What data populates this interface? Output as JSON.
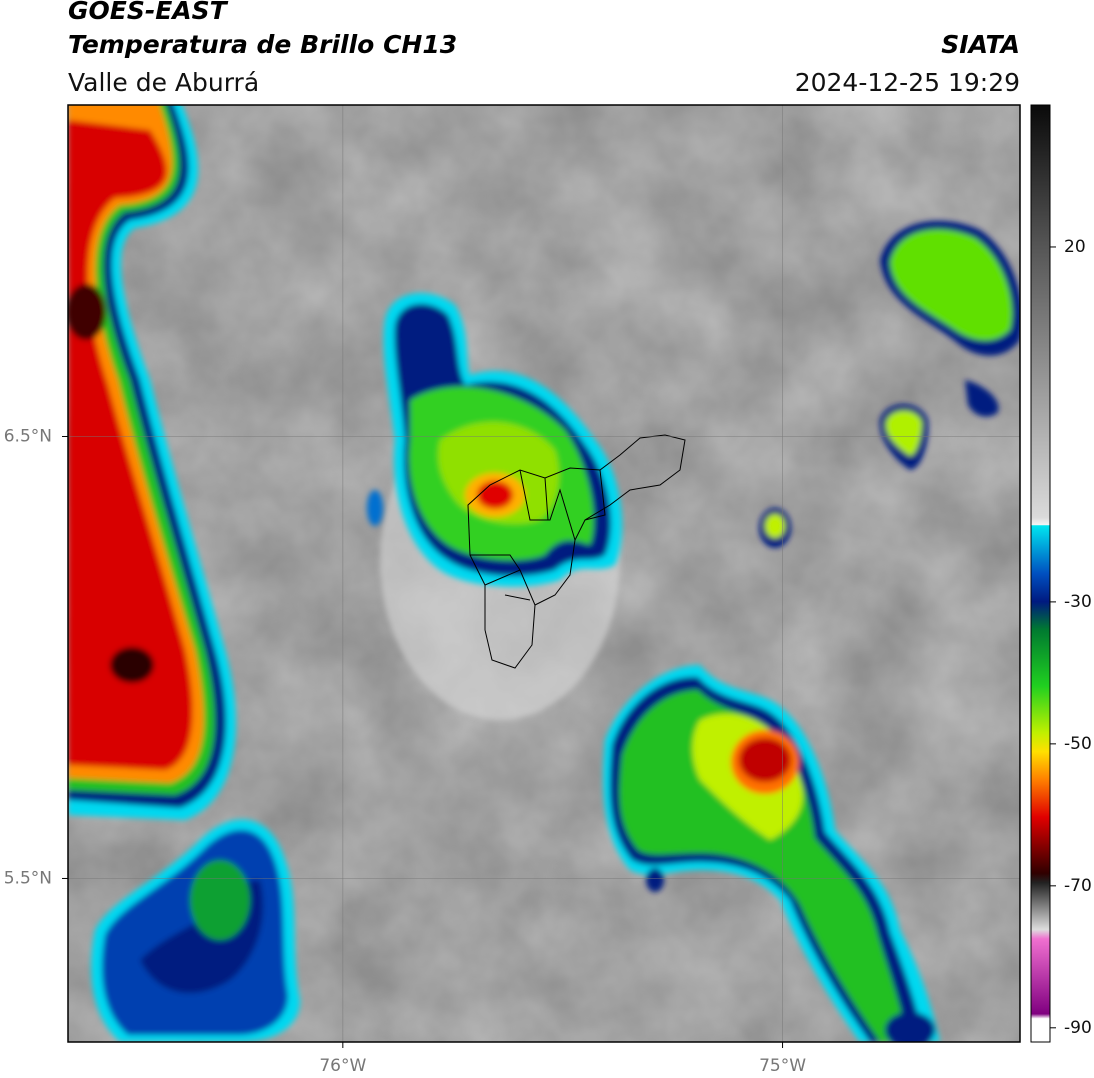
{
  "header": {
    "title": "GOES-EAST",
    "subtitle": "Temperatura de Brillo CH13",
    "region": "Valle de Aburrá",
    "source": "SIATA",
    "datetime": "2024-12-25 19:29"
  },
  "map": {
    "xlim": [
      -76.625,
      -74.46
    ],
    "ylim": [
      5.13,
      7.25
    ],
    "xticks": [
      {
        "value": -76,
        "label": "76°W"
      },
      {
        "value": -75,
        "label": "75°W"
      }
    ],
    "yticks": [
      {
        "value": 6.5,
        "label": "6.5°N"
      },
      {
        "value": 5.5,
        "label": "5.5°N"
      }
    ],
    "grid": true
  },
  "colorbar": {
    "lim": [
      -92,
      40
    ],
    "ticks": [
      20,
      -30,
      -50,
      -70,
      -90
    ]
  }
}
